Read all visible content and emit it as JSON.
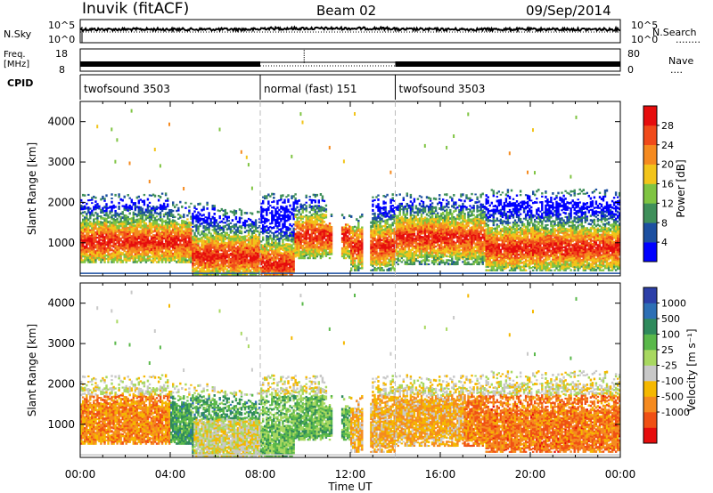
{
  "header": {
    "station": "Inuvik (fitACF)",
    "beam": "Beam 02",
    "date": "09/Sep/2014"
  },
  "noise_panel": {
    "left_label": "N.Sky",
    "left_ticks": [
      "10^5",
      "10^0"
    ],
    "right_ticks": [
      "10^5",
      "10^0"
    ],
    "right_label": "N.Search",
    "right_legend_line": "........"
  },
  "freq_panel": {
    "left_label_1": "Freq.",
    "left_label_2": "[MHz]",
    "left_ticks": [
      "18",
      "8"
    ],
    "right_ticks": [
      "80",
      "0"
    ],
    "right_label": "Nave",
    "right_legend_line": "...."
  },
  "cpid_panel": {
    "label": "CPID",
    "segments": [
      {
        "name": "twofsound 3503",
        "start": 0,
        "end": 8
      },
      {
        "name": "normal (fast) 151",
        "start": 8,
        "end": 14
      },
      {
        "name": "twofsound 3503",
        "start": 14,
        "end": 24
      }
    ]
  },
  "x_axis": {
    "ticks": [
      "00:00",
      "04:00",
      "08:00",
      "12:00",
      "16:00",
      "20:00",
      "00:00"
    ],
    "label": "Time UT"
  },
  "power_panel": {
    "ylabel": "Slant Range [km]",
    "yticks": [
      "1000",
      "2000",
      "3000",
      "4000"
    ],
    "colorbar_label": "Power [dB]",
    "colorbar_ticks": [
      "4",
      "8",
      "12",
      "16",
      "20",
      "24",
      "28"
    ],
    "colors": [
      "#0000ff",
      "#1c4fa0",
      "#3f8f5a",
      "#7fc442",
      "#f2c41a",
      "#f58a1f",
      "#f04a1a",
      "#e60d0d"
    ]
  },
  "velocity_panel": {
    "ylabel": "Slant Range [km]",
    "yticks": [
      "1000",
      "2000",
      "3000",
      "4000"
    ],
    "colorbar_label": "Velocity [m s⁻¹]",
    "colorbar_ticks": [
      "1000",
      "500",
      "100",
      "25",
      "-25",
      "-100",
      "-500",
      "-1000"
    ],
    "colors": [
      "#2c3fa8",
      "#2d6fb5",
      "#2f8a5c",
      "#5ab84a",
      "#a8d860",
      "#c8c8c8",
      "#f5b800",
      "#f58a1f",
      "#f05014",
      "#e60d0d"
    ]
  },
  "chart_data": [
    {
      "type": "heatmap",
      "title": "Power",
      "x_range_hours": [
        0,
        24
      ],
      "y_range_km": [
        180,
        4500
      ],
      "colorbar": "Power [dB]",
      "colorbar_range": [
        0,
        32
      ],
      "scatter_regions": [
        {
          "t0": 0.0,
          "t1": 5.0,
          "r0": 600,
          "r1": 1500,
          "level": "high"
        },
        {
          "t0": 5.0,
          "t1": 8.0,
          "r0": 200,
          "r1": 1100,
          "level": "high"
        },
        {
          "t0": 8.0,
          "t1": 9.5,
          "r0": 200,
          "r1": 600,
          "level": "high"
        },
        {
          "t0": 9.5,
          "t1": 12.0,
          "r0": 800,
          "r1": 1600,
          "level": "high"
        },
        {
          "t0": 14.0,
          "t1": 18.0,
          "r0": 700,
          "r1": 1600,
          "level": "high"
        },
        {
          "t0": 18.0,
          "t1": 24.0,
          "r0": 500,
          "r1": 1300,
          "level": "high"
        }
      ]
    },
    {
      "type": "heatmap",
      "title": "Velocity",
      "x_range_hours": [
        0,
        24
      ],
      "y_range_km": [
        180,
        4500
      ],
      "colorbar": "Velocity [m s-1]",
      "colorbar_range": [
        -1000,
        1000
      ]
    }
  ]
}
